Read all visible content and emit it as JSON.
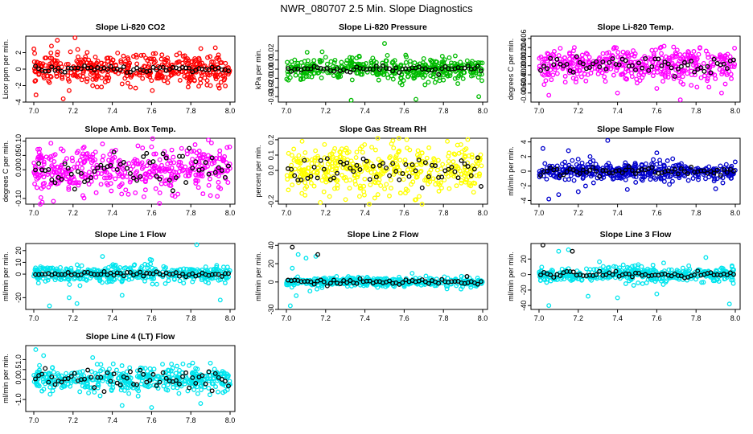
{
  "page": {
    "title": "NWR_080707  2.5 Min. Slope Diagnostics"
  },
  "chart_data": [
    {
      "type": "scatter",
      "title": "Slope Li-820 CO2",
      "ylabel": "Licor ppm per min.",
      "xlim": [
        7.0,
        8.0
      ],
      "ylim": [
        -4,
        4
      ],
      "xticks": [
        "7.0",
        "7.2",
        "7.4",
        "7.6",
        "7.8",
        "8.0"
      ],
      "yticks": [
        {
          "v": -4,
          "label": "-4"
        },
        {
          "v": -2,
          "label": "-2"
        },
        {
          "v": 0,
          "label": "0"
        },
        {
          "v": 2,
          "label": "2"
        }
      ],
      "color": "#ff0000",
      "spread": 0.9,
      "outliers": [
        [
          7.12,
          3.5
        ],
        [
          7.21,
          3.8
        ],
        [
          7.09,
          2.8
        ],
        [
          7.18,
          -2.6
        ],
        [
          7.3,
          -2.0
        ],
        [
          7.45,
          -1.8
        ],
        [
          7.85,
          -1.7
        ],
        [
          7.94,
          -2.0
        ],
        [
          7.62,
          1.9
        ],
        [
          7.27,
          -1.5
        ],
        [
          7.15,
          -3.6
        ]
      ],
      "black_spread": 0.2
    },
    {
      "type": "scatter",
      "title": "Slope Li-820 Pressure",
      "ylabel": "kPa per min.",
      "xlim": [
        7.0,
        8.0
      ],
      "ylim": [
        -0.036,
        0.036
      ],
      "xticks": [
        "7.0",
        "7.2",
        "7.4",
        "7.6",
        "7.8",
        "8.0"
      ],
      "yticks": [
        {
          "v": -0.03,
          "label": "-0.03"
        },
        {
          "v": -0.02,
          "label": "-0.02"
        },
        {
          "v": -0.01,
          "label": "-0.01"
        },
        {
          "v": 0,
          "label": "0.00"
        },
        {
          "v": 0.01,
          "label": "0.01"
        },
        {
          "v": 0.02,
          "label": "0.02"
        }
      ],
      "color": "#00bb00",
      "spread": 0.006,
      "outliers": [
        [
          7.5,
          0.028
        ],
        [
          7.33,
          -0.034
        ],
        [
          7.66,
          -0.033
        ],
        [
          7.98,
          -0.03
        ],
        [
          7.44,
          0.012
        ],
        [
          7.58,
          -0.015
        ],
        [
          7.2,
          0.013
        ],
        [
          7.01,
          -0.012
        ],
        [
          7.8,
          -0.012
        ]
      ],
      "black_spread": 0.002
    },
    {
      "type": "scatter",
      "title": "Slope Li-820 Temp.",
      "ylabel": "degrees C per min.",
      "xlim": [
        7.0,
        8.0
      ],
      "ylim": [
        -0.008,
        0.0065
      ],
      "xticks": [
        "7.0",
        "7.2",
        "7.4",
        "7.6",
        "7.8",
        "8.0"
      ],
      "yticks": [
        {
          "v": -0.006,
          "label": "-0.006"
        },
        {
          "v": -0.004,
          "label": "-0.004"
        },
        {
          "v": -0.002,
          "label": "-0.002"
        },
        {
          "v": 0,
          "label": "0.000"
        },
        {
          "v": 0.002,
          "label": "0.002"
        },
        {
          "v": 0.004,
          "label": "0.004"
        },
        {
          "v": 0.006,
          "label": "0.006"
        }
      ],
      "color": "#ff00ff",
      "spread": 0.0018,
      "outliers": [
        [
          7.05,
          -0.0065
        ],
        [
          7.72,
          -0.0075
        ],
        [
          7.4,
          -0.006
        ],
        [
          7.82,
          0.004
        ],
        [
          7.18,
          0.004
        ],
        [
          7.6,
          -0.005
        ],
        [
          7.93,
          -0.006
        ]
      ],
      "black_spread": 0.0009
    },
    {
      "type": "scatter",
      "title": "Slope Amb. Box Temp.",
      "ylabel": "degrees C per min.",
      "xlim": [
        7.0,
        8.0
      ],
      "ylim": [
        -0.12,
        0.11
      ],
      "xticks": [
        "7.0",
        "7.2",
        "7.4",
        "7.6",
        "7.8",
        "8.0"
      ],
      "yticks": [
        {
          "v": -0.1,
          "label": "-0.10"
        },
        {
          "v": 0,
          "label": "0.00"
        },
        {
          "v": 0.05,
          "label": "0.05"
        },
        {
          "v": 0.1,
          "label": "0.10"
        }
      ],
      "color": "#ff00ff",
      "spread": 0.04,
      "outliers": [
        [
          7.1,
          -0.11
        ],
        [
          7.35,
          0.09
        ],
        [
          7.6,
          0.08
        ],
        [
          7.9,
          -0.09
        ],
        [
          7.25,
          -0.09
        ]
      ],
      "black_spread": 0.03
    },
    {
      "type": "scatter",
      "title": "Slope Gas Stream RH",
      "ylabel": "percent per min.",
      "xlim": [
        7.0,
        8.0
      ],
      "ylim": [
        -0.22,
        0.21
      ],
      "xticks": [
        "7.0",
        "7.2",
        "7.4",
        "7.6",
        "7.8",
        "8.0"
      ],
      "yticks": [
        {
          "v": -0.2,
          "label": "-0.2"
        },
        {
          "v": 0,
          "label": "0.0"
        },
        {
          "v": 0.1,
          "label": "0.1"
        },
        {
          "v": 0.2,
          "label": "0.2"
        }
      ],
      "color": "#ffff00",
      "spread": 0.08,
      "outliers": [
        [
          7.08,
          0.19
        ],
        [
          7.45,
          -0.18
        ],
        [
          7.82,
          0.19
        ],
        [
          7.22,
          -0.17
        ],
        [
          7.66,
          -0.19
        ]
      ],
      "black_spread": 0.06
    },
    {
      "type": "scatter",
      "title": "Slope Sample Flow",
      "ylabel": "ml/min per min.",
      "xlim": [
        7.0,
        8.0
      ],
      "ylim": [
        -4.5,
        4.5
      ],
      "xticks": [
        "7.0",
        "7.2",
        "7.4",
        "7.6",
        "7.8",
        "8.0"
      ],
      "yticks": [
        {
          "v": -4,
          "label": "-4"
        },
        {
          "v": -2,
          "label": "-2"
        },
        {
          "v": 0,
          "label": "0"
        },
        {
          "v": 2,
          "label": "2"
        },
        {
          "v": 4,
          "label": "4"
        }
      ],
      "color": "#0000cc",
      "spread": 0.6,
      "outliers": [
        [
          7.35,
          4.2
        ],
        [
          7.02,
          3.1
        ],
        [
          7.05,
          -3.8
        ],
        [
          7.1,
          -3.2
        ],
        [
          7.15,
          2.8
        ],
        [
          7.45,
          -2.5
        ],
        [
          7.6,
          2.5
        ],
        [
          7.9,
          -2.4
        ],
        [
          7.2,
          -2.8
        ],
        [
          7.26,
          2.0
        ]
      ],
      "black_spread": 0.3
    },
    {
      "type": "scatter",
      "title": "Slope Line 1 Flow",
      "ylabel": "ml/min per min.",
      "xlim": [
        7.0,
        8.0
      ],
      "ylim": [
        -30,
        26
      ],
      "xticks": [
        "7.0",
        "7.2",
        "7.4",
        "7.6",
        "7.8",
        "8.0"
      ],
      "yticks": [
        {
          "v": -20,
          "label": "-20"
        },
        {
          "v": 0,
          "label": "0"
        },
        {
          "v": 10,
          "label": "10"
        },
        {
          "v": 20,
          "label": "20"
        }
      ],
      "color": "#00e5ee",
      "spread": 3.5,
      "outliers": [
        [
          7.08,
          -27
        ],
        [
          7.22,
          -25
        ],
        [
          7.83,
          25
        ],
        [
          7.35,
          15
        ],
        [
          7.95,
          -22
        ],
        [
          7.45,
          -18
        ],
        [
          7.6,
          12
        ],
        [
          7.18,
          -20
        ]
      ],
      "black_spread": 1.0
    },
    {
      "type": "scatter",
      "title": "Slope Line 2 Flow",
      "ylabel": "ml/min per min.",
      "xlim": [
        7.0,
        8.0
      ],
      "ylim": [
        -30,
        42
      ],
      "xticks": [
        "7.0",
        "7.2",
        "7.4",
        "7.6",
        "7.8",
        "8.0"
      ],
      "yticks": [
        {
          "v": -30,
          "label": "-30"
        },
        {
          "v": 0,
          "label": "0"
        },
        {
          "v": 20,
          "label": "20"
        },
        {
          "v": 40,
          "label": "40"
        }
      ],
      "color": "#00e5ee",
      "spread": 2.5,
      "outliers": [
        [
          7.02,
          -26
        ],
        [
          7.06,
          30
        ],
        [
          7.1,
          26
        ],
        [
          7.15,
          28
        ],
        [
          7.05,
          -15
        ],
        [
          7.03,
          15
        ],
        [
          7.12,
          -10
        ]
      ],
      "black_spread": 1.5,
      "black_outliers": [
        [
          7.03,
          38
        ],
        [
          7.16,
          30
        ],
        [
          7.92,
          6
        ]
      ]
    },
    {
      "type": "scatter",
      "title": "Slope Line 3 Flow",
      "ylabel": "ml/min per min.",
      "xlim": [
        7.0,
        8.0
      ],
      "ylim": [
        -45,
        40
      ],
      "xticks": [
        "7.0",
        "7.2",
        "7.4",
        "7.6",
        "7.8",
        "8.0"
      ],
      "yticks": [
        {
          "v": -40,
          "label": "-40"
        },
        {
          "v": -20,
          "label": "-20"
        },
        {
          "v": 0,
          "label": "0"
        },
        {
          "v": 20,
          "label": "20"
        }
      ],
      "color": "#00e5ee",
      "spread": 5,
      "outliers": [
        [
          7.05,
          -40
        ],
        [
          7.1,
          30
        ],
        [
          7.15,
          32
        ],
        [
          7.97,
          -38
        ],
        [
          7.4,
          -30
        ],
        [
          7.85,
          22
        ],
        [
          7.6,
          -25
        ],
        [
          7.25,
          -28
        ]
      ],
      "black_spread": 2,
      "black_outliers": [
        [
          7.02,
          38
        ],
        [
          7.17,
          30
        ]
      ]
    },
    {
      "type": "scatter",
      "title": "Slope Line 4 (LT) Flow",
      "ylabel": "ml/min per min.",
      "xlim": [
        7.0,
        8.0
      ],
      "ylim": [
        -1.6,
        1.7
      ],
      "xticks": [
        "7.0",
        "7.2",
        "7.4",
        "7.6",
        "7.8",
        "8.0"
      ],
      "yticks": [
        {
          "v": -1,
          "label": "-1.0"
        },
        {
          "v": 0,
          "label": "0.0"
        },
        {
          "v": 0.5,
          "label": "0.5"
        },
        {
          "v": 1,
          "label": "1.0"
        }
      ],
      "color": "#00e5ee",
      "spread": 0.3,
      "outliers": [
        [
          7.01,
          1.5
        ],
        [
          7.05,
          1.2
        ],
        [
          7.6,
          -1.4
        ],
        [
          7.45,
          -1.3
        ],
        [
          7.85,
          -1.2
        ],
        [
          7.3,
          1.1
        ]
      ],
      "black_spread": 0.25
    }
  ]
}
